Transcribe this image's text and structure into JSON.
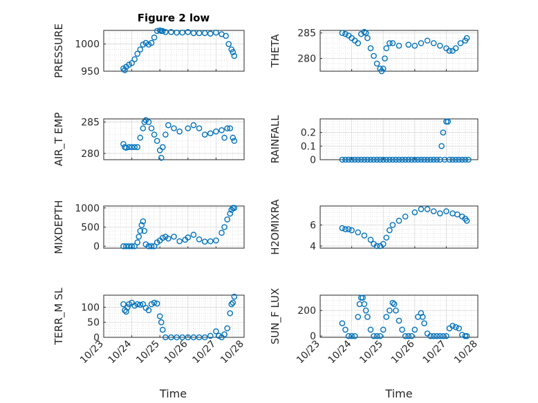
{
  "figure": {
    "title": "Figure 2 low"
  },
  "chart_data": [
    {
      "type": "scatter",
      "panel": "PRESSURE",
      "ylabel": "PRESSURE",
      "ylim": [
        950,
        1025
      ],
      "yticks": [
        950,
        1000
      ],
      "xlim": [
        0,
        5
      ],
      "xticklabels": [
        "10/23",
        "10/24",
        "10/25",
        "10/26",
        "10/27",
        "10/28"
      ],
      "x": [
        0.7,
        0.75,
        0.8,
        0.9,
        1.0,
        1.1,
        1.2,
        1.3,
        1.4,
        1.5,
        1.6,
        1.7,
        1.8,
        1.9,
        2.0,
        2.05,
        2.1,
        2.2,
        2.4,
        2.6,
        2.8,
        3.0,
        3.2,
        3.4,
        3.6,
        3.8,
        4.0,
        4.2,
        4.35,
        4.45,
        4.55,
        4.6,
        4.65
      ],
      "y": [
        955,
        952,
        958,
        962,
        965,
        972,
        982,
        990,
        999,
        1002,
        999,
        1002,
        1012,
        1024,
        1025,
        1024,
        1024,
        1022,
        1022,
        1021,
        1021,
        1022,
        1020,
        1020,
        1020,
        1019,
        1021,
        1018,
        1015,
        1000,
        990,
        985,
        978
      ]
    },
    {
      "type": "scatter",
      "panel": "THETA",
      "ylabel": "THETA",
      "ylim": [
        277.5,
        285.5
      ],
      "yticks": [
        280,
        285
      ],
      "xlim": [
        0,
        5
      ],
      "xticklabels": [
        "10/23",
        "10/24",
        "10/25",
        "10/26",
        "10/27",
        "10/28"
      ],
      "x": [
        0.7,
        0.8,
        0.9,
        1.0,
        1.1,
        1.2,
        1.3,
        1.4,
        1.45,
        1.5,
        1.6,
        1.7,
        1.8,
        1.9,
        1.95,
        2.0,
        2.05,
        2.1,
        2.2,
        2.3,
        2.5,
        2.8,
        3.0,
        3.2,
        3.4,
        3.6,
        3.8,
        4.0,
        4.1,
        4.2,
        4.3,
        4.45,
        4.6,
        4.65
      ],
      "y": [
        285,
        284.8,
        284.5,
        284,
        283.5,
        283,
        284.8,
        285.2,
        285,
        284,
        282,
        280.5,
        279,
        278,
        277.5,
        278,
        280,
        282,
        283,
        283,
        282.5,
        282.7,
        282.5,
        283,
        283.5,
        283,
        282.5,
        282,
        281.5,
        281.5,
        282,
        283,
        283.5,
        284
      ]
    },
    {
      "type": "scatter",
      "panel": "AIR_TEMP",
      "ylabel": "AIR_T EMP",
      "ylim": [
        279,
        285.5
      ],
      "yticks": [
        280,
        285
      ],
      "xlim": [
        0,
        5
      ],
      "xticklabels": [
        "10/23",
        "10/24",
        "10/25",
        "10/26",
        "10/27",
        "10/28"
      ],
      "x": [
        0.7,
        0.75,
        0.8,
        0.9,
        1.0,
        1.1,
        1.2,
        1.3,
        1.4,
        1.45,
        1.5,
        1.6,
        1.7,
        1.8,
        1.9,
        2.0,
        2.05,
        2.1,
        2.2,
        2.3,
        2.5,
        2.7,
        3.0,
        3.2,
        3.4,
        3.6,
        3.8,
        4.0,
        4.2,
        4.3,
        4.4,
        4.5,
        4.6,
        4.65
      ],
      "y": [
        281.5,
        281,
        280.9,
        281,
        281,
        281,
        281,
        282.5,
        284,
        285,
        285.3,
        285,
        284,
        283,
        282,
        280.5,
        279.3,
        281,
        283,
        284.5,
        284,
        283.5,
        284,
        284.5,
        284,
        283,
        283.2,
        283.5,
        283.7,
        282.5,
        284,
        284,
        282.5,
        282
      ]
    },
    {
      "type": "scatter",
      "panel": "RAINFALL",
      "ylabel": "RAINFALL",
      "ylim": [
        0,
        0.3
      ],
      "yticks": [
        0,
        0.1,
        0.2
      ],
      "xlim": [
        0,
        5
      ],
      "xticklabels": [
        "10/23",
        "10/24",
        "10/25",
        "10/26",
        "10/27",
        "10/28"
      ],
      "x": [
        0.7,
        0.8,
        0.9,
        1.0,
        1.1,
        1.2,
        1.3,
        1.4,
        1.5,
        1.6,
        1.7,
        1.8,
        1.9,
        2.0,
        2.1,
        2.2,
        2.3,
        2.4,
        2.5,
        2.6,
        2.7,
        2.8,
        2.9,
        3.0,
        3.1,
        3.2,
        3.3,
        3.4,
        3.5,
        3.6,
        3.7,
        3.8,
        3.85,
        3.9,
        3.95,
        4.0,
        4.05,
        4.1,
        4.2,
        4.3,
        4.4,
        4.5,
        4.6,
        4.7
      ],
      "y": [
        0,
        0,
        0,
        0,
        0,
        0,
        0,
        0,
        0,
        0,
        0,
        0,
        0,
        0,
        0,
        0,
        0,
        0,
        0,
        0,
        0,
        0,
        0,
        0,
        0,
        0,
        0,
        0,
        0,
        0,
        0,
        0,
        0.1,
        0.2,
        0,
        0.28,
        0.28,
        0,
        0,
        0,
        0,
        0,
        0,
        0
      ]
    },
    {
      "type": "scatter",
      "panel": "MIXDEPTH",
      "ylabel": "MIXDEPTH",
      "ylim": [
        -50,
        1050
      ],
      "yticks": [
        0,
        500,
        1000
      ],
      "xlim": [
        0,
        5
      ],
      "xticklabels": [
        "10/23",
        "10/24",
        "10/25",
        "10/26",
        "10/27",
        "10/28"
      ],
      "x": [
        0.7,
        0.8,
        0.9,
        1.0,
        1.1,
        1.2,
        1.25,
        1.3,
        1.35,
        1.4,
        1.45,
        1.5,
        1.6,
        1.7,
        1.8,
        1.9,
        2.0,
        2.1,
        2.2,
        2.3,
        2.5,
        2.7,
        2.9,
        3.0,
        3.2,
        3.4,
        3.6,
        3.8,
        4.0,
        4.2,
        4.3,
        4.4,
        4.5,
        4.55,
        4.6,
        4.65
      ],
      "y": [
        0,
        0,
        0,
        0,
        0,
        100,
        250,
        400,
        550,
        650,
        400,
        50,
        0,
        0,
        0,
        100,
        150,
        220,
        250,
        200,
        250,
        130,
        170,
        230,
        300,
        180,
        120,
        130,
        150,
        350,
        500,
        700,
        850,
        950,
        1000,
        1000
      ]
    },
    {
      "type": "scatter",
      "panel": "H2OMIXRA",
      "ylabel": "H2OMIXRA",
      "ylim": [
        3.8,
        7.8
      ],
      "yticks": [
        4,
        6
      ],
      "xlim": [
        0,
        5
      ],
      "xticklabels": [
        "10/23",
        "10/24",
        "10/25",
        "10/26",
        "10/27",
        "10/28"
      ],
      "x": [
        0.7,
        0.8,
        0.9,
        1.0,
        1.2,
        1.4,
        1.6,
        1.7,
        1.8,
        1.9,
        2.0,
        2.1,
        2.2,
        2.3,
        2.5,
        2.7,
        3.0,
        3.2,
        3.4,
        3.6,
        3.8,
        4.0,
        4.2,
        4.35,
        4.5,
        4.6,
        4.65
      ],
      "y": [
        5.7,
        5.6,
        5.6,
        5.5,
        5.3,
        5,
        4.6,
        4.2,
        4,
        4,
        4.2,
        4.8,
        5.5,
        6,
        6.4,
        6.8,
        7.2,
        7.5,
        7.5,
        7.3,
        7.1,
        7.3,
        7.1,
        7,
        6.8,
        6.6,
        6.4
      ]
    },
    {
      "type": "scatter",
      "panel": "TERR_MSL",
      "ylabel": "TERR_M SL",
      "ylim": [
        0,
        140
      ],
      "yticks": [
        0,
        50,
        100
      ],
      "xlim": [
        0,
        5
      ],
      "xticklabels": [
        "10/23",
        "10/24",
        "10/25",
        "10/26",
        "10/27",
        "10/28"
      ],
      "x": [
        0.7,
        0.75,
        0.8,
        0.85,
        0.9,
        1.0,
        1.1,
        1.2,
        1.3,
        1.4,
        1.5,
        1.6,
        1.7,
        1.8,
        1.9,
        2.0,
        2.05,
        2.1,
        2.2,
        2.4,
        2.6,
        2.8,
        3.0,
        3.2,
        3.4,
        3.6,
        3.8,
        4.0,
        4.1,
        4.2,
        4.3,
        4.4,
        4.5,
        4.55,
        4.6,
        4.65
      ],
      "y": [
        110,
        90,
        85,
        100,
        110,
        115,
        105,
        110,
        108,
        110,
        98,
        90,
        110,
        115,
        112,
        70,
        50,
        25,
        0,
        0,
        0,
        0,
        0,
        0,
        0,
        0,
        5,
        20,
        5,
        0,
        10,
        30,
        80,
        110,
        115,
        135
      ]
    },
    {
      "type": "scatter",
      "panel": "SUN_FLUX",
      "ylabel": "SUN_F LUX",
      "ylim": [
        -10,
        320
      ],
      "yticks": [
        0,
        200
      ],
      "xlim": [
        0,
        5
      ],
      "xticklabels": [
        "10/23",
        "10/24",
        "10/25",
        "10/26",
        "10/27",
        "10/28"
      ],
      "x": [
        0.7,
        0.8,
        0.9,
        1.0,
        1.1,
        1.2,
        1.25,
        1.3,
        1.35,
        1.4,
        1.45,
        1.5,
        1.6,
        1.7,
        1.8,
        1.9,
        2.0,
        2.1,
        2.2,
        2.3,
        2.35,
        2.4,
        2.5,
        2.6,
        2.7,
        2.8,
        2.9,
        3.0,
        3.1,
        3.2,
        3.25,
        3.3,
        3.4,
        3.5,
        3.6,
        3.7,
        3.8,
        3.9,
        4.0,
        4.1,
        4.2,
        4.3,
        4.4,
        4.5,
        4.6,
        4.65
      ],
      "y": [
        100,
        50,
        0,
        0,
        0,
        150,
        250,
        300,
        300,
        250,
        200,
        150,
        50,
        0,
        0,
        0,
        50,
        150,
        200,
        260,
        250,
        200,
        120,
        50,
        0,
        0,
        0,
        50,
        150,
        180,
        150,
        100,
        20,
        0,
        0,
        0,
        0,
        0,
        0,
        60,
        80,
        70,
        60,
        10,
        0,
        0
      ]
    }
  ],
  "axis_labels": {
    "x": "Time"
  }
}
